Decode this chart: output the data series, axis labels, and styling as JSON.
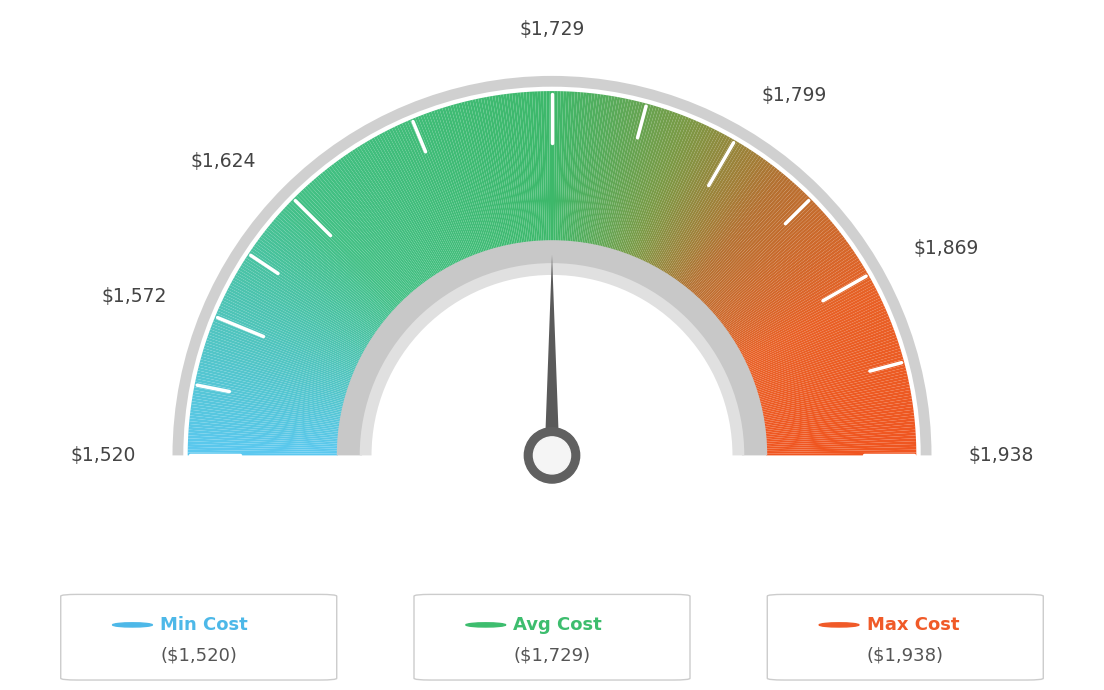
{
  "min_val": 1520,
  "max_val": 1938,
  "avg_val": 1729,
  "tick_labels": [
    "$1,520",
    "$1,572",
    "$1,624",
    "$1,729",
    "$1,799",
    "$1,869",
    "$1,938"
  ],
  "tick_values": [
    1520,
    1572,
    1624,
    1729,
    1799,
    1869,
    1938
  ],
  "legend_items": [
    {
      "label": "Min Cost",
      "value": "($1,520)",
      "color": "#4db8e8"
    },
    {
      "label": "Avg Cost",
      "value": "($1,729)",
      "color": "#3dbd6e"
    },
    {
      "label": "Max Cost",
      "value": "($1,938)",
      "color": "#f05a28"
    }
  ],
  "background_color": "#ffffff",
  "needle_color": "#606060"
}
